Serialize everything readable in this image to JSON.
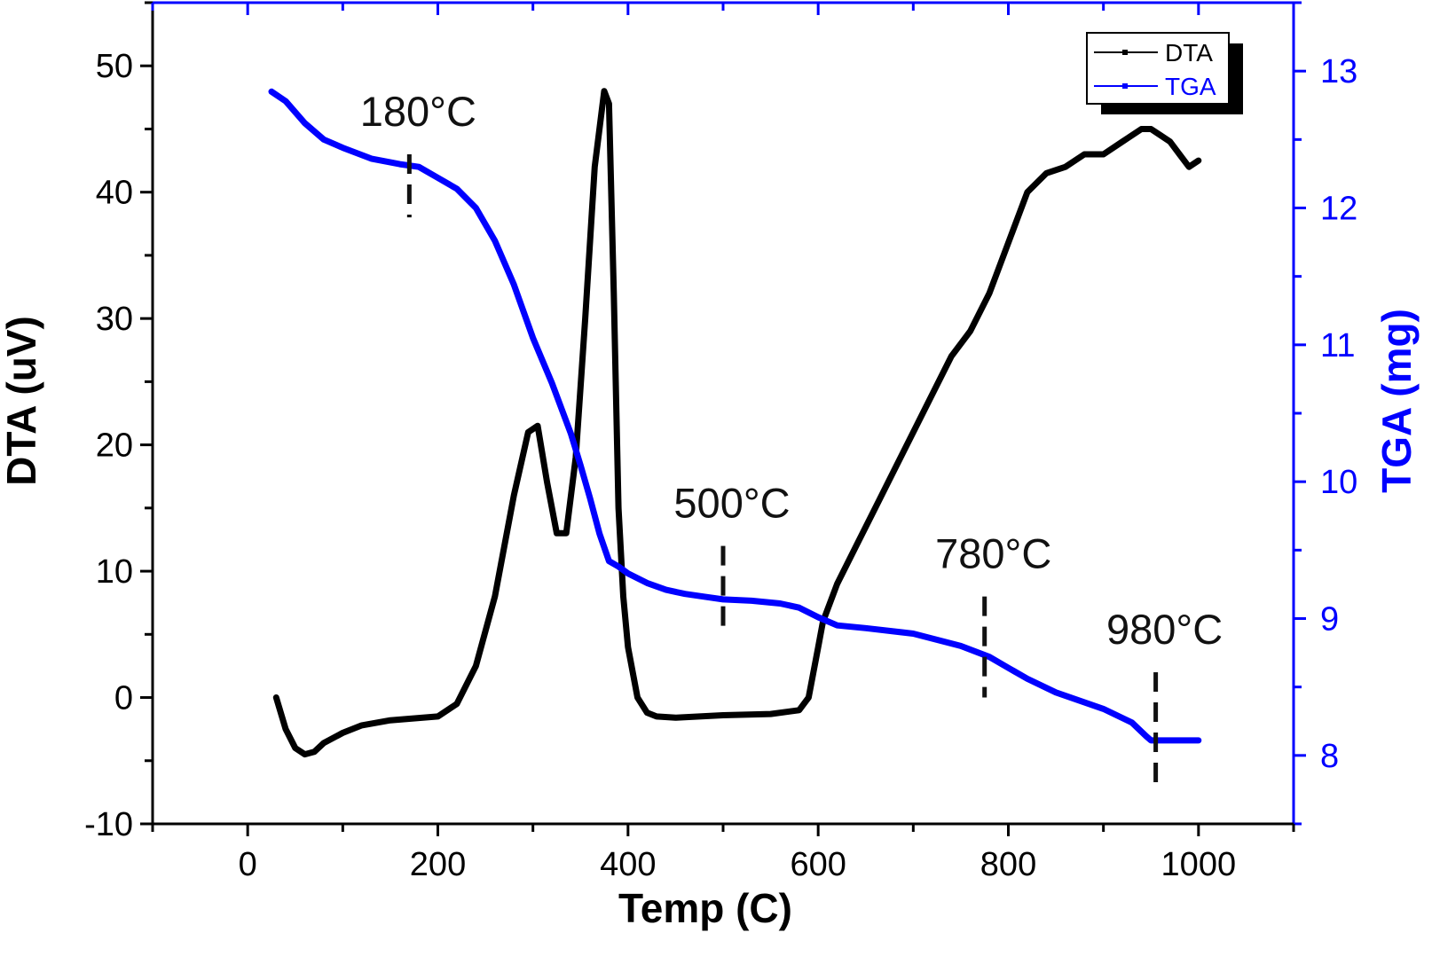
{
  "chart_data": {
    "type": "line",
    "title": "",
    "xlabel": "Temp (C)",
    "ylabel_left": "DTA (uV)",
    "ylabel_right": "TGA (mg)",
    "xlim": [
      -100,
      1100
    ],
    "ylim_left": [
      -10,
      55
    ],
    "ylim_right": [
      7.5,
      13.5
    ],
    "x_ticks": [
      0,
      200,
      400,
      600,
      800,
      1000
    ],
    "y_left_ticks": [
      -10,
      0,
      10,
      20,
      30,
      40,
      50
    ],
    "y_right_ticks": [
      8,
      9,
      10,
      11,
      12,
      13
    ],
    "x_tick_labels": [
      "0",
      "200",
      "400",
      "600",
      "800",
      "1000"
    ],
    "y_left_tick_labels": [
      "-10",
      "0",
      "10",
      "20",
      "30",
      "40",
      "50"
    ],
    "y_right_tick_labels": [
      "8",
      "9",
      "10",
      "11",
      "12",
      "13"
    ],
    "legend_position": "top-right",
    "grid": false,
    "series": [
      {
        "name": "DTA",
        "axis": "left",
        "color": "#000000",
        "x": [
          30,
          40,
          50,
          60,
          70,
          80,
          100,
          120,
          150,
          200,
          220,
          240,
          260,
          280,
          295,
          305,
          315,
          325,
          335,
          345,
          355,
          365,
          375,
          380,
          385,
          390,
          395,
          400,
          410,
          420,
          430,
          450,
          500,
          550,
          580,
          590,
          600,
          605,
          620,
          640,
          660,
          680,
          700,
          720,
          740,
          760,
          780,
          790,
          800,
          810,
          820,
          840,
          860,
          880,
          900,
          920,
          940,
          950,
          960,
          970,
          980,
          990,
          1000
        ],
        "y": [
          0,
          -2.5,
          -4,
          -4.5,
          -4.3,
          -3.6,
          -2.8,
          -2.2,
          -1.8,
          -1.5,
          -0.5,
          2.5,
          8,
          16,
          21,
          21.5,
          17,
          13,
          13,
          19,
          30,
          42,
          48,
          47,
          32,
          15,
          8,
          4,
          0,
          -1.2,
          -1.5,
          -1.6,
          -1.4,
          -1.3,
          -1.0,
          0,
          4,
          6,
          9,
          12,
          15,
          18,
          21,
          24,
          27,
          29,
          32,
          34,
          36,
          38,
          40,
          41.5,
          42,
          43,
          43,
          44,
          45,
          45,
          44.5,
          44,
          43,
          42,
          42.5
        ],
        "__comment_dta": "values read from left axis"
      },
      {
        "name": "TGA",
        "axis": "right",
        "color": "#0000ff",
        "x": [
          25,
          40,
          60,
          80,
          100,
          130,
          160,
          180,
          200,
          220,
          240,
          260,
          280,
          300,
          320,
          340,
          350,
          360,
          370,
          380,
          390,
          400,
          420,
          440,
          460,
          480,
          500,
          530,
          560,
          580,
          600,
          620,
          650,
          700,
          750,
          780,
          800,
          820,
          850,
          900,
          930,
          945,
          950,
          955,
          960,
          1000
        ],
        "y": [
          12.85,
          12.78,
          12.62,
          12.5,
          12.44,
          12.36,
          12.32,
          12.3,
          12.22,
          12.14,
          12.0,
          11.76,
          11.44,
          11.05,
          10.72,
          10.35,
          10.12,
          9.88,
          9.62,
          9.42,
          9.38,
          9.33,
          9.26,
          9.21,
          9.18,
          9.16,
          9.14,
          9.13,
          9.11,
          9.08,
          9.01,
          8.95,
          8.93,
          8.89,
          8.8,
          8.72,
          8.64,
          8.56,
          8.46,
          8.34,
          8.24,
          8.14,
          8.11,
          8.11,
          8.11,
          8.11
        ],
        "__comment_tga": "values read from right axis"
      }
    ],
    "annotations": [
      {
        "x": 170,
        "text": "180°C",
        "dash_from": 43,
        "dash_to": 38
      },
      {
        "x": 500,
        "text": "500°C",
        "dash_from": 12,
        "dash_to": 5
      },
      {
        "x": 775,
        "text": "780°C",
        "dash_from": 8,
        "dash_to": 0
      },
      {
        "x": 955,
        "text": "980°C",
        "dash_from": 2,
        "dash_to": -7
      }
    ]
  }
}
